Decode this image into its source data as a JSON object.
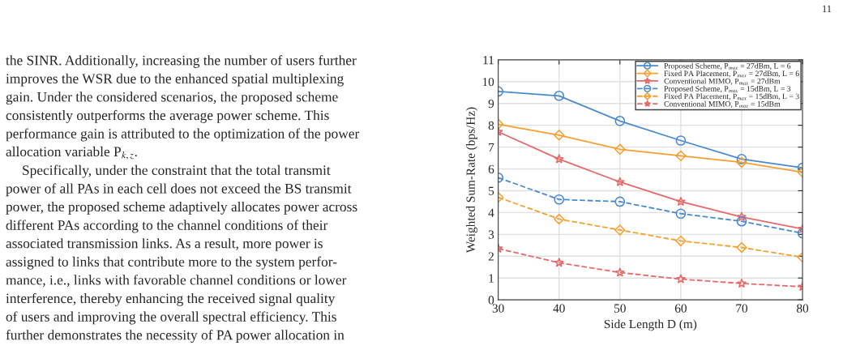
{
  "chart_data": {
    "type": "line",
    "xlabel": "Side Length D (m)",
    "ylabel": "Weighted Sum-Rate (bps/Hz)",
    "x": [
      30,
      40,
      50,
      60,
      70,
      80
    ],
    "xlim": [
      30,
      80
    ],
    "xticks": [
      30,
      40,
      50,
      60,
      70,
      80
    ],
    "ylim": [
      0,
      11
    ],
    "yticks": [
      0,
      1,
      2,
      3,
      4,
      5,
      6,
      7,
      8,
      9,
      10,
      11
    ],
    "grid": true,
    "legend": "top right",
    "series": [
      {
        "name": "Proposed Scheme, P$_{max}$ = 27dBm, L = 6",
        "color": "#4a8ad0",
        "marker": "circle",
        "line_style": "solid",
        "values": [
          9.55,
          9.35,
          8.2,
          7.3,
          6.45,
          6.05
        ]
      },
      {
        "name": "Fixed PA Placement, P$_{max}$ = 27dBm, L = 6",
        "color": "#f5a030",
        "marker": "diamond",
        "line_style": "solid",
        "values": [
          8.05,
          7.55,
          6.9,
          6.6,
          6.3,
          5.85
        ]
      },
      {
        "name": "Conventional MIMO, P$_{max}$ = 27dBm",
        "color": "#e66a6a",
        "marker": "star",
        "line_style": "solid",
        "values": [
          7.7,
          6.45,
          5.4,
          4.5,
          3.8,
          3.25
        ]
      },
      {
        "name": "Proposed Scheme, P$_{max}$ = 15dBm, L = 3",
        "color": "#4a8ad0",
        "marker": "circle",
        "line_style": "dashed",
        "values": [
          5.6,
          4.6,
          4.5,
          3.95,
          3.6,
          3.05
        ]
      },
      {
        "name": "Fixed PA Placement, P$_{max}$ = 15dBm, L = 3",
        "color": "#f5a030",
        "marker": "diamond",
        "line_style": "dashed",
        "values": [
          4.7,
          3.7,
          3.2,
          2.7,
          2.4,
          1.95
        ]
      },
      {
        "name": "Conventional MIMO, P$_{max}$ = 15dBm",
        "color": "#e66a6a",
        "marker": "star",
        "line_style": "dashed",
        "values": [
          2.35,
          1.7,
          1.25,
          0.95,
          0.75,
          0.6
        ]
      }
    ],
    "annotations": [
      "11",
      "the SINR. Additionally, increasing the number of users further",
      "improves the WSR due to the enhanced spatial multiplexing",
      "gain. Under the considered scenarios, the proposed scheme",
      "consistently outperforms the average power scheme. This",
      "performance gain is attributed to the optimization of the power",
      "allocation variable P$_{k,z}$.",
      "Specifically, under the constraint that the total transmit",
      "power of all PAs in each cell does not exceed the BS transmit",
      "power, the proposed scheme adaptively allocates power across",
      "different PAs according to the channel conditions of their",
      "associated transmission links. As a result, more power is",
      "assigned to links that contribute more to the system perfor-",
      "mance, i.e., links with favorable channel conditions or lower",
      "interference, thereby enhancing the received signal quality",
      "of users and improving the overall spectral efficiency. This",
      "further demonstrates the necessity of PA power allocation in"
    ]
  }
}
